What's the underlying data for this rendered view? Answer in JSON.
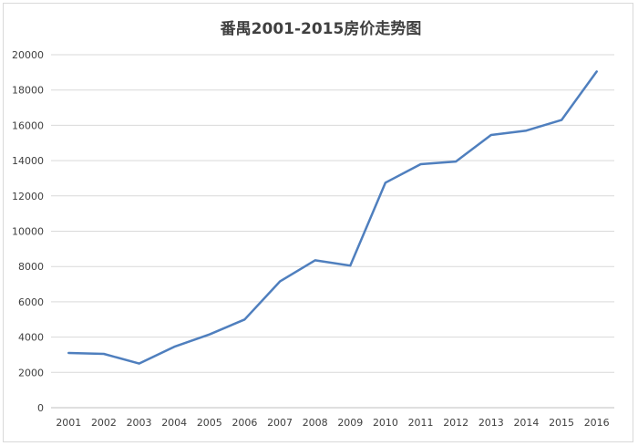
{
  "chart_data": {
    "type": "line",
    "title": "番禺2001-2015房价走势图",
    "xlabel": "",
    "ylabel": "",
    "categories": [
      "2001",
      "2002",
      "2003",
      "2004",
      "2005",
      "2006",
      "2007",
      "2008",
      "2009",
      "2010",
      "2011",
      "2012",
      "2013",
      "2014",
      "2015",
      "2016"
    ],
    "series": [
      {
        "values": [
          3100,
          3050,
          2500,
          3450,
          4150,
          5000,
          7150,
          8350,
          8050,
          12750,
          13800,
          13950,
          15450,
          15700,
          16300,
          19050
        ],
        "color": "#4f7fbe"
      }
    ],
    "ylim": [
      0,
      20000
    ],
    "yticks": [
      0,
      2000,
      4000,
      6000,
      8000,
      10000,
      12000,
      14000,
      16000,
      18000,
      20000
    ],
    "grid": true,
    "legend": "none"
  }
}
